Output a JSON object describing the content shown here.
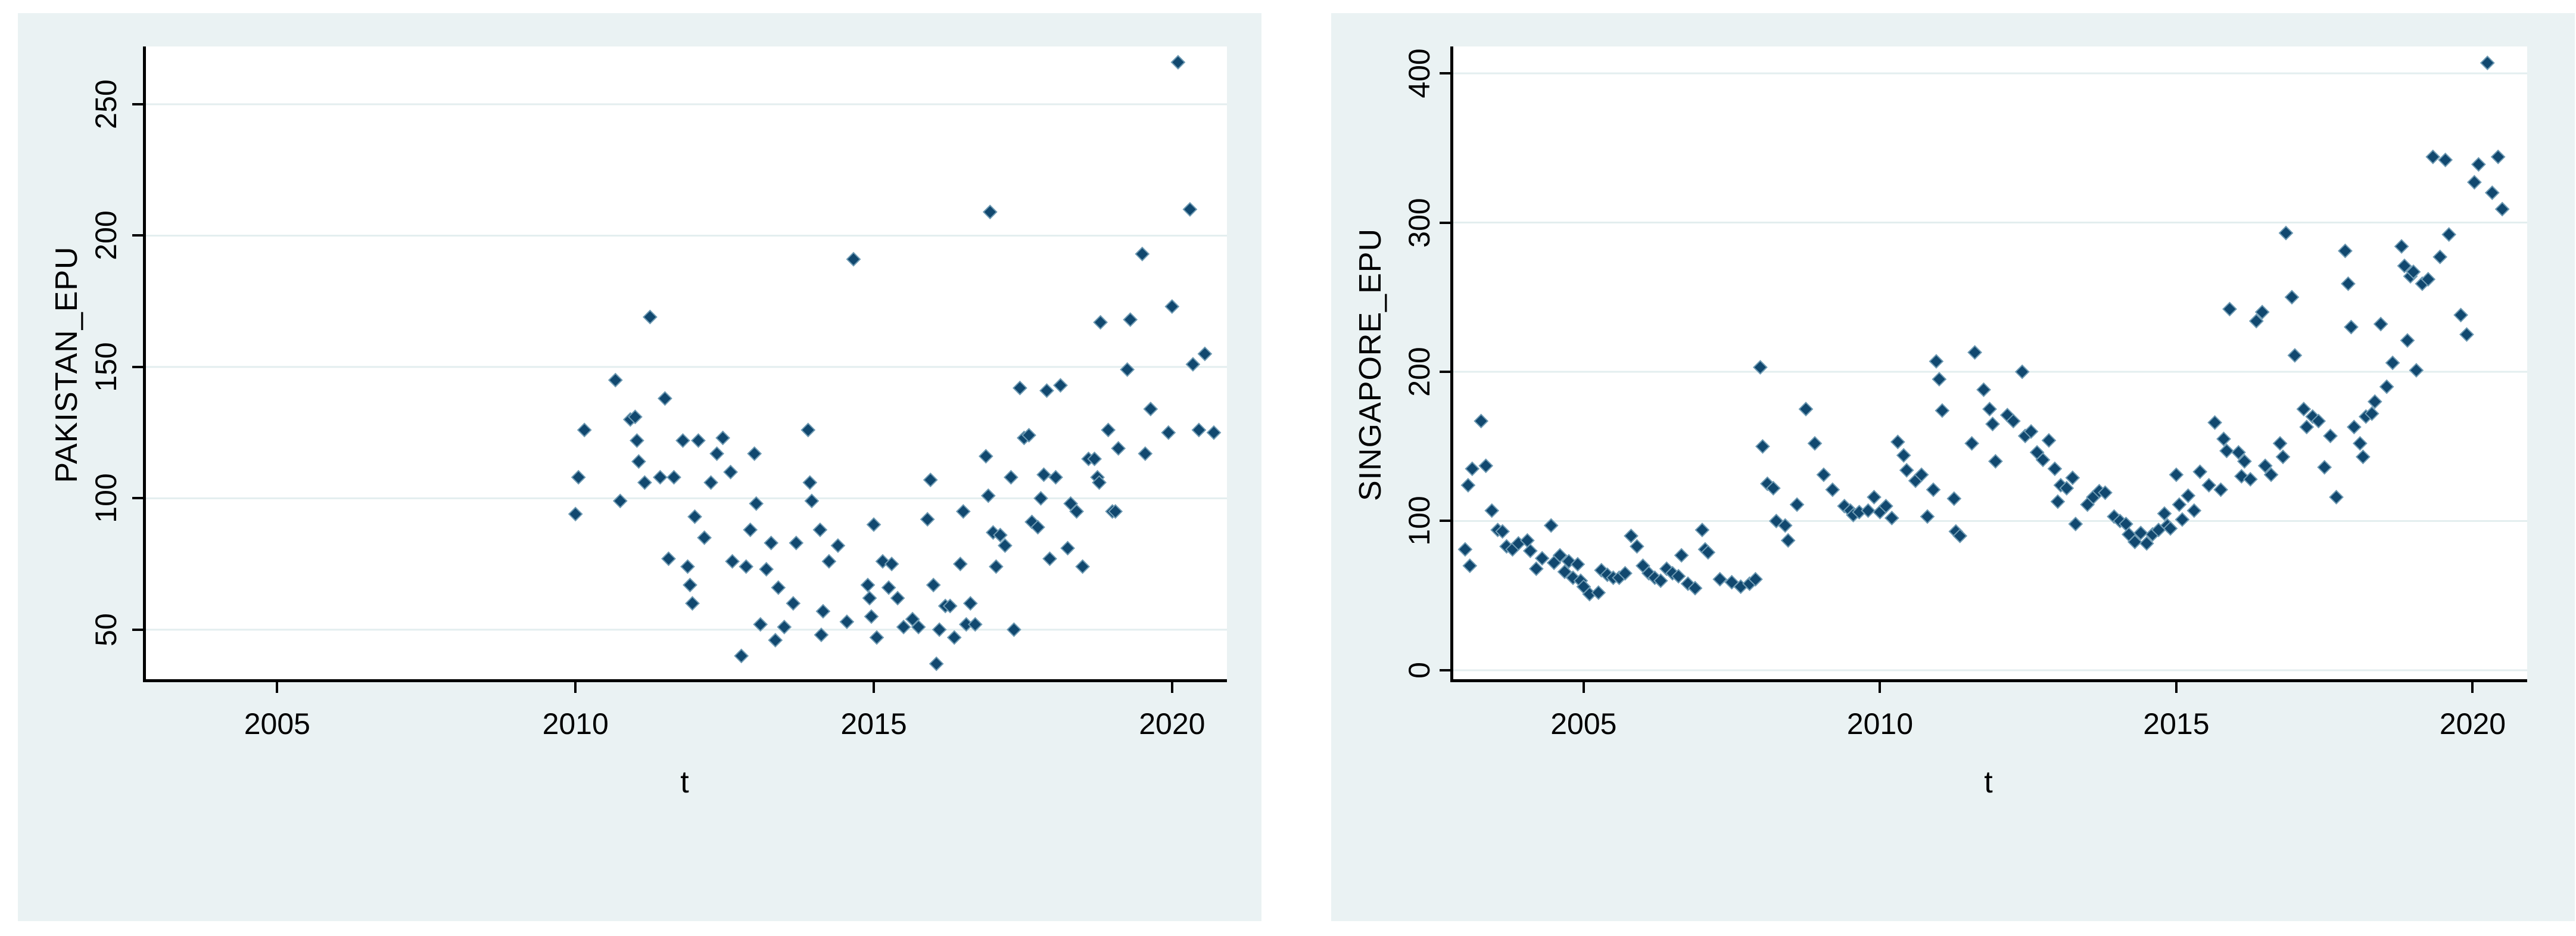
{
  "style": {
    "panel_bg": "#eaf2f3",
    "plot_bg": "#ffffff",
    "grid_color": "#e3eeef",
    "axis_color": "#000000",
    "marker_color": "#11486f",
    "marker_edge": "#6e9ab3",
    "text_color": "#000000"
  },
  "chart_data": [
    {
      "type": "scatter",
      "title": "",
      "ylabel": "PAKISTAN_EPU",
      "xlabel": "t",
      "marker": "diamond",
      "grid": "horizontal",
      "legend_position": "none",
      "xlim": [
        2002.75,
        2020.92
      ],
      "ylim": [
        30,
        272
      ],
      "xticks": [
        2005,
        2010,
        2015,
        2020
      ],
      "yticks": [
        50,
        100,
        150,
        200,
        250
      ],
      "points": [
        [
          2010.0,
          94
        ],
        [
          2010.05,
          108
        ],
        [
          2010.15,
          126
        ],
        [
          2010.67,
          145
        ],
        [
          2010.75,
          99
        ],
        [
          2010.92,
          130
        ],
        [
          2011.0,
          131
        ],
        [
          2011.03,
          122
        ],
        [
          2011.06,
          114
        ],
        [
          2011.16,
          106
        ],
        [
          2011.25,
          169
        ],
        [
          2011.42,
          108
        ],
        [
          2011.5,
          138
        ],
        [
          2011.56,
          77
        ],
        [
          2011.65,
          108
        ],
        [
          2011.8,
          122
        ],
        [
          2011.88,
          74
        ],
        [
          2011.92,
          67
        ],
        [
          2011.96,
          60
        ],
        [
          2012.0,
          93
        ],
        [
          2012.06,
          122
        ],
        [
          2012.16,
          85
        ],
        [
          2012.27,
          106
        ],
        [
          2012.37,
          117
        ],
        [
          2012.47,
          123
        ],
        [
          2012.6,
          110
        ],
        [
          2012.63,
          76
        ],
        [
          2012.78,
          40
        ],
        [
          2012.86,
          74
        ],
        [
          2012.93,
          88
        ],
        [
          2013.0,
          117
        ],
        [
          2013.03,
          98
        ],
        [
          2013.1,
          52
        ],
        [
          2013.2,
          73
        ],
        [
          2013.28,
          83
        ],
        [
          2013.35,
          46
        ],
        [
          2013.4,
          66
        ],
        [
          2013.5,
          51
        ],
        [
          2013.65,
          60
        ],
        [
          2013.7,
          83
        ],
        [
          2013.9,
          126
        ],
        [
          2013.93,
          106
        ],
        [
          2013.96,
          99
        ],
        [
          2014.1,
          88
        ],
        [
          2014.12,
          48
        ],
        [
          2014.15,
          57
        ],
        [
          2014.25,
          76
        ],
        [
          2014.4,
          82
        ],
        [
          2014.55,
          53
        ],
        [
          2014.66,
          191
        ],
        [
          2014.9,
          67
        ],
        [
          2014.93,
          62
        ],
        [
          2014.96,
          55
        ],
        [
          2015.0,
          90
        ],
        [
          2015.05,
          47
        ],
        [
          2015.15,
          76
        ],
        [
          2015.25,
          66
        ],
        [
          2015.3,
          75
        ],
        [
          2015.4,
          62
        ],
        [
          2015.5,
          51
        ],
        [
          2015.65,
          54
        ],
        [
          2015.75,
          51
        ],
        [
          2015.9,
          92
        ],
        [
          2015.95,
          107
        ],
        [
          2016.0,
          67
        ],
        [
          2016.05,
          37
        ],
        [
          2016.1,
          50
        ],
        [
          2016.2,
          59
        ],
        [
          2016.28,
          59
        ],
        [
          2016.35,
          47
        ],
        [
          2016.45,
          75
        ],
        [
          2016.5,
          95
        ],
        [
          2016.55,
          52
        ],
        [
          2016.62,
          60
        ],
        [
          2016.7,
          52
        ],
        [
          2016.88,
          116
        ],
        [
          2016.92,
          101
        ],
        [
          2016.95,
          209
        ],
        [
          2017.0,
          87
        ],
        [
          2017.05,
          74
        ],
        [
          2017.12,
          86
        ],
        [
          2017.2,
          82
        ],
        [
          2017.3,
          108
        ],
        [
          2017.35,
          50
        ],
        [
          2017.45,
          142
        ],
        [
          2017.52,
          123
        ],
        [
          2017.6,
          124
        ],
        [
          2017.65,
          91
        ],
        [
          2017.75,
          89
        ],
        [
          2017.8,
          100
        ],
        [
          2017.85,
          109
        ],
        [
          2017.9,
          141
        ],
        [
          2017.95,
          77
        ],
        [
          2018.05,
          108
        ],
        [
          2018.13,
          143
        ],
        [
          2018.25,
          81
        ],
        [
          2018.3,
          98
        ],
        [
          2018.4,
          95
        ],
        [
          2018.5,
          74
        ],
        [
          2018.6,
          115
        ],
        [
          2018.7,
          115
        ],
        [
          2018.75,
          108
        ],
        [
          2018.78,
          106
        ],
        [
          2018.8,
          167
        ],
        [
          2018.93,
          126
        ],
        [
          2019.0,
          95
        ],
        [
          2019.05,
          95
        ],
        [
          2019.1,
          119
        ],
        [
          2019.25,
          149
        ],
        [
          2019.3,
          168
        ],
        [
          2019.5,
          193
        ],
        [
          2019.55,
          117
        ],
        [
          2019.64,
          134
        ],
        [
          2019.94,
          125
        ],
        [
          2020.0,
          173
        ],
        [
          2020.1,
          266
        ],
        [
          2020.3,
          210
        ],
        [
          2020.35,
          151
        ],
        [
          2020.45,
          126
        ],
        [
          2020.55,
          155
        ],
        [
          2020.7,
          125
        ]
      ]
    },
    {
      "type": "scatter",
      "title": "",
      "ylabel": "SINGAPORE_EPU",
      "xlabel": "t",
      "marker": "diamond",
      "grid": "horizontal",
      "legend_position": "none",
      "xlim": [
        2002.75,
        2020.92
      ],
      "ylim": [
        -8,
        418
      ],
      "xticks": [
        2005,
        2010,
        2015,
        2020
      ],
      "yticks": [
        0,
        100,
        200,
        300,
        400
      ],
      "points": [
        [
          2003.0,
          81
        ],
        [
          2003.05,
          124
        ],
        [
          2003.08,
          70
        ],
        [
          2003.12,
          135
        ],
        [
          2003.27,
          167
        ],
        [
          2003.35,
          137
        ],
        [
          2003.45,
          107
        ],
        [
          2003.55,
          94
        ],
        [
          2003.63,
          93
        ],
        [
          2003.7,
          83
        ],
        [
          2003.8,
          81
        ],
        [
          2003.9,
          85
        ],
        [
          2004.05,
          87
        ],
        [
          2004.1,
          80
        ],
        [
          2004.2,
          68
        ],
        [
          2004.3,
          75
        ],
        [
          2004.45,
          97
        ],
        [
          2004.5,
          72
        ],
        [
          2004.6,
          77
        ],
        [
          2004.68,
          66
        ],
        [
          2004.75,
          73
        ],
        [
          2004.82,
          62
        ],
        [
          2004.9,
          71
        ],
        [
          2004.95,
          60
        ],
        [
          2005.0,
          56
        ],
        [
          2005.1,
          51
        ],
        [
          2005.25,
          52
        ],
        [
          2005.3,
          67
        ],
        [
          2005.4,
          64
        ],
        [
          2005.5,
          62
        ],
        [
          2005.6,
          62
        ],
        [
          2005.7,
          65
        ],
        [
          2005.8,
          90
        ],
        [
          2005.9,
          83
        ],
        [
          2006.0,
          70
        ],
        [
          2006.1,
          65
        ],
        [
          2006.2,
          62
        ],
        [
          2006.3,
          60
        ],
        [
          2006.4,
          68
        ],
        [
          2006.5,
          65
        ],
        [
          2006.6,
          63
        ],
        [
          2006.65,
          77
        ],
        [
          2006.76,
          58
        ],
        [
          2006.88,
          55
        ],
        [
          2007.0,
          94
        ],
        [
          2007.05,
          81
        ],
        [
          2007.1,
          79
        ],
        [
          2007.3,
          61
        ],
        [
          2007.5,
          59
        ],
        [
          2007.65,
          56
        ],
        [
          2007.8,
          58
        ],
        [
          2007.9,
          61
        ],
        [
          2007.98,
          203
        ],
        [
          2008.02,
          150
        ],
        [
          2008.1,
          125
        ],
        [
          2008.2,
          122
        ],
        [
          2008.25,
          100
        ],
        [
          2008.4,
          97
        ],
        [
          2008.45,
          87
        ],
        [
          2008.6,
          111
        ],
        [
          2008.75,
          175
        ],
        [
          2008.9,
          152
        ],
        [
          2009.05,
          131
        ],
        [
          2009.2,
          121
        ],
        [
          2009.4,
          110
        ],
        [
          2009.5,
          107
        ],
        [
          2009.55,
          104
        ],
        [
          2009.65,
          106
        ],
        [
          2009.8,
          107
        ],
        [
          2009.9,
          116
        ],
        [
          2010.0,
          106
        ],
        [
          2010.1,
          110
        ],
        [
          2010.2,
          102
        ],
        [
          2010.3,
          153
        ],
        [
          2010.4,
          144
        ],
        [
          2010.45,
          134
        ],
        [
          2010.6,
          127
        ],
        [
          2010.7,
          131
        ],
        [
          2010.8,
          103
        ],
        [
          2010.9,
          121
        ],
        [
          2010.95,
          207
        ],
        [
          2011.0,
          195
        ],
        [
          2011.05,
          174
        ],
        [
          2011.25,
          115
        ],
        [
          2011.28,
          93
        ],
        [
          2011.35,
          90
        ],
        [
          2011.55,
          152
        ],
        [
          2011.6,
          213
        ],
        [
          2011.75,
          188
        ],
        [
          2011.85,
          175
        ],
        [
          2011.9,
          165
        ],
        [
          2011.95,
          140
        ],
        [
          2012.15,
          171
        ],
        [
          2012.25,
          167
        ],
        [
          2012.4,
          200
        ],
        [
          2012.45,
          157
        ],
        [
          2012.55,
          160
        ],
        [
          2012.65,
          146
        ],
        [
          2012.75,
          141
        ],
        [
          2012.85,
          154
        ],
        [
          2012.95,
          135
        ],
        [
          2013.0,
          113
        ],
        [
          2013.05,
          124
        ],
        [
          2013.15,
          122
        ],
        [
          2013.25,
          129
        ],
        [
          2013.3,
          98
        ],
        [
          2013.5,
          111
        ],
        [
          2013.6,
          116
        ],
        [
          2013.7,
          120
        ],
        [
          2013.8,
          119
        ],
        [
          2013.95,
          103
        ],
        [
          2014.05,
          100
        ],
        [
          2014.15,
          98
        ],
        [
          2014.2,
          91
        ],
        [
          2014.3,
          86
        ],
        [
          2014.4,
          92
        ],
        [
          2014.5,
          85
        ],
        [
          2014.6,
          91
        ],
        [
          2014.7,
          94
        ],
        [
          2014.8,
          105
        ],
        [
          2014.85,
          97
        ],
        [
          2014.9,
          95
        ],
        [
          2015.0,
          131
        ],
        [
          2015.05,
          111
        ],
        [
          2015.1,
          101
        ],
        [
          2015.2,
          117
        ],
        [
          2015.3,
          107
        ],
        [
          2015.4,
          133
        ],
        [
          2015.55,
          124
        ],
        [
          2015.65,
          166
        ],
        [
          2015.75,
          121
        ],
        [
          2015.8,
          155
        ],
        [
          2015.85,
          147
        ],
        [
          2015.9,
          242
        ],
        [
          2016.05,
          146
        ],
        [
          2016.1,
          130
        ],
        [
          2016.15,
          140
        ],
        [
          2016.25,
          128
        ],
        [
          2016.35,
          234
        ],
        [
          2016.45,
          240
        ],
        [
          2016.5,
          137
        ],
        [
          2016.6,
          131
        ],
        [
          2016.75,
          152
        ],
        [
          2016.8,
          143
        ],
        [
          2016.85,
          293
        ],
        [
          2016.95,
          250
        ],
        [
          2017.0,
          211
        ],
        [
          2017.15,
          175
        ],
        [
          2017.2,
          163
        ],
        [
          2017.3,
          170
        ],
        [
          2017.4,
          167
        ],
        [
          2017.5,
          136
        ],
        [
          2017.6,
          157
        ],
        [
          2017.7,
          116
        ],
        [
          2017.85,
          281
        ],
        [
          2017.9,
          259
        ],
        [
          2017.95,
          230
        ],
        [
          2018.0,
          163
        ],
        [
          2018.1,
          152
        ],
        [
          2018.15,
          143
        ],
        [
          2018.2,
          170
        ],
        [
          2018.3,
          172
        ],
        [
          2018.35,
          180
        ],
        [
          2018.45,
          232
        ],
        [
          2018.55,
          190
        ],
        [
          2018.65,
          206
        ],
        [
          2018.8,
          284
        ],
        [
          2018.85,
          271
        ],
        [
          2018.9,
          221
        ],
        [
          2018.95,
          264
        ],
        [
          2019.0,
          267
        ],
        [
          2019.05,
          201
        ],
        [
          2019.15,
          259
        ],
        [
          2019.25,
          262
        ],
        [
          2019.33,
          344
        ],
        [
          2019.45,
          277
        ],
        [
          2019.54,
          342
        ],
        [
          2019.6,
          292
        ],
        [
          2019.8,
          238
        ],
        [
          2019.9,
          225
        ],
        [
          2020.03,
          327
        ],
        [
          2020.1,
          339
        ],
        [
          2020.25,
          407
        ],
        [
          2020.33,
          320
        ],
        [
          2020.43,
          344
        ],
        [
          2020.5,
          309
        ]
      ]
    }
  ]
}
